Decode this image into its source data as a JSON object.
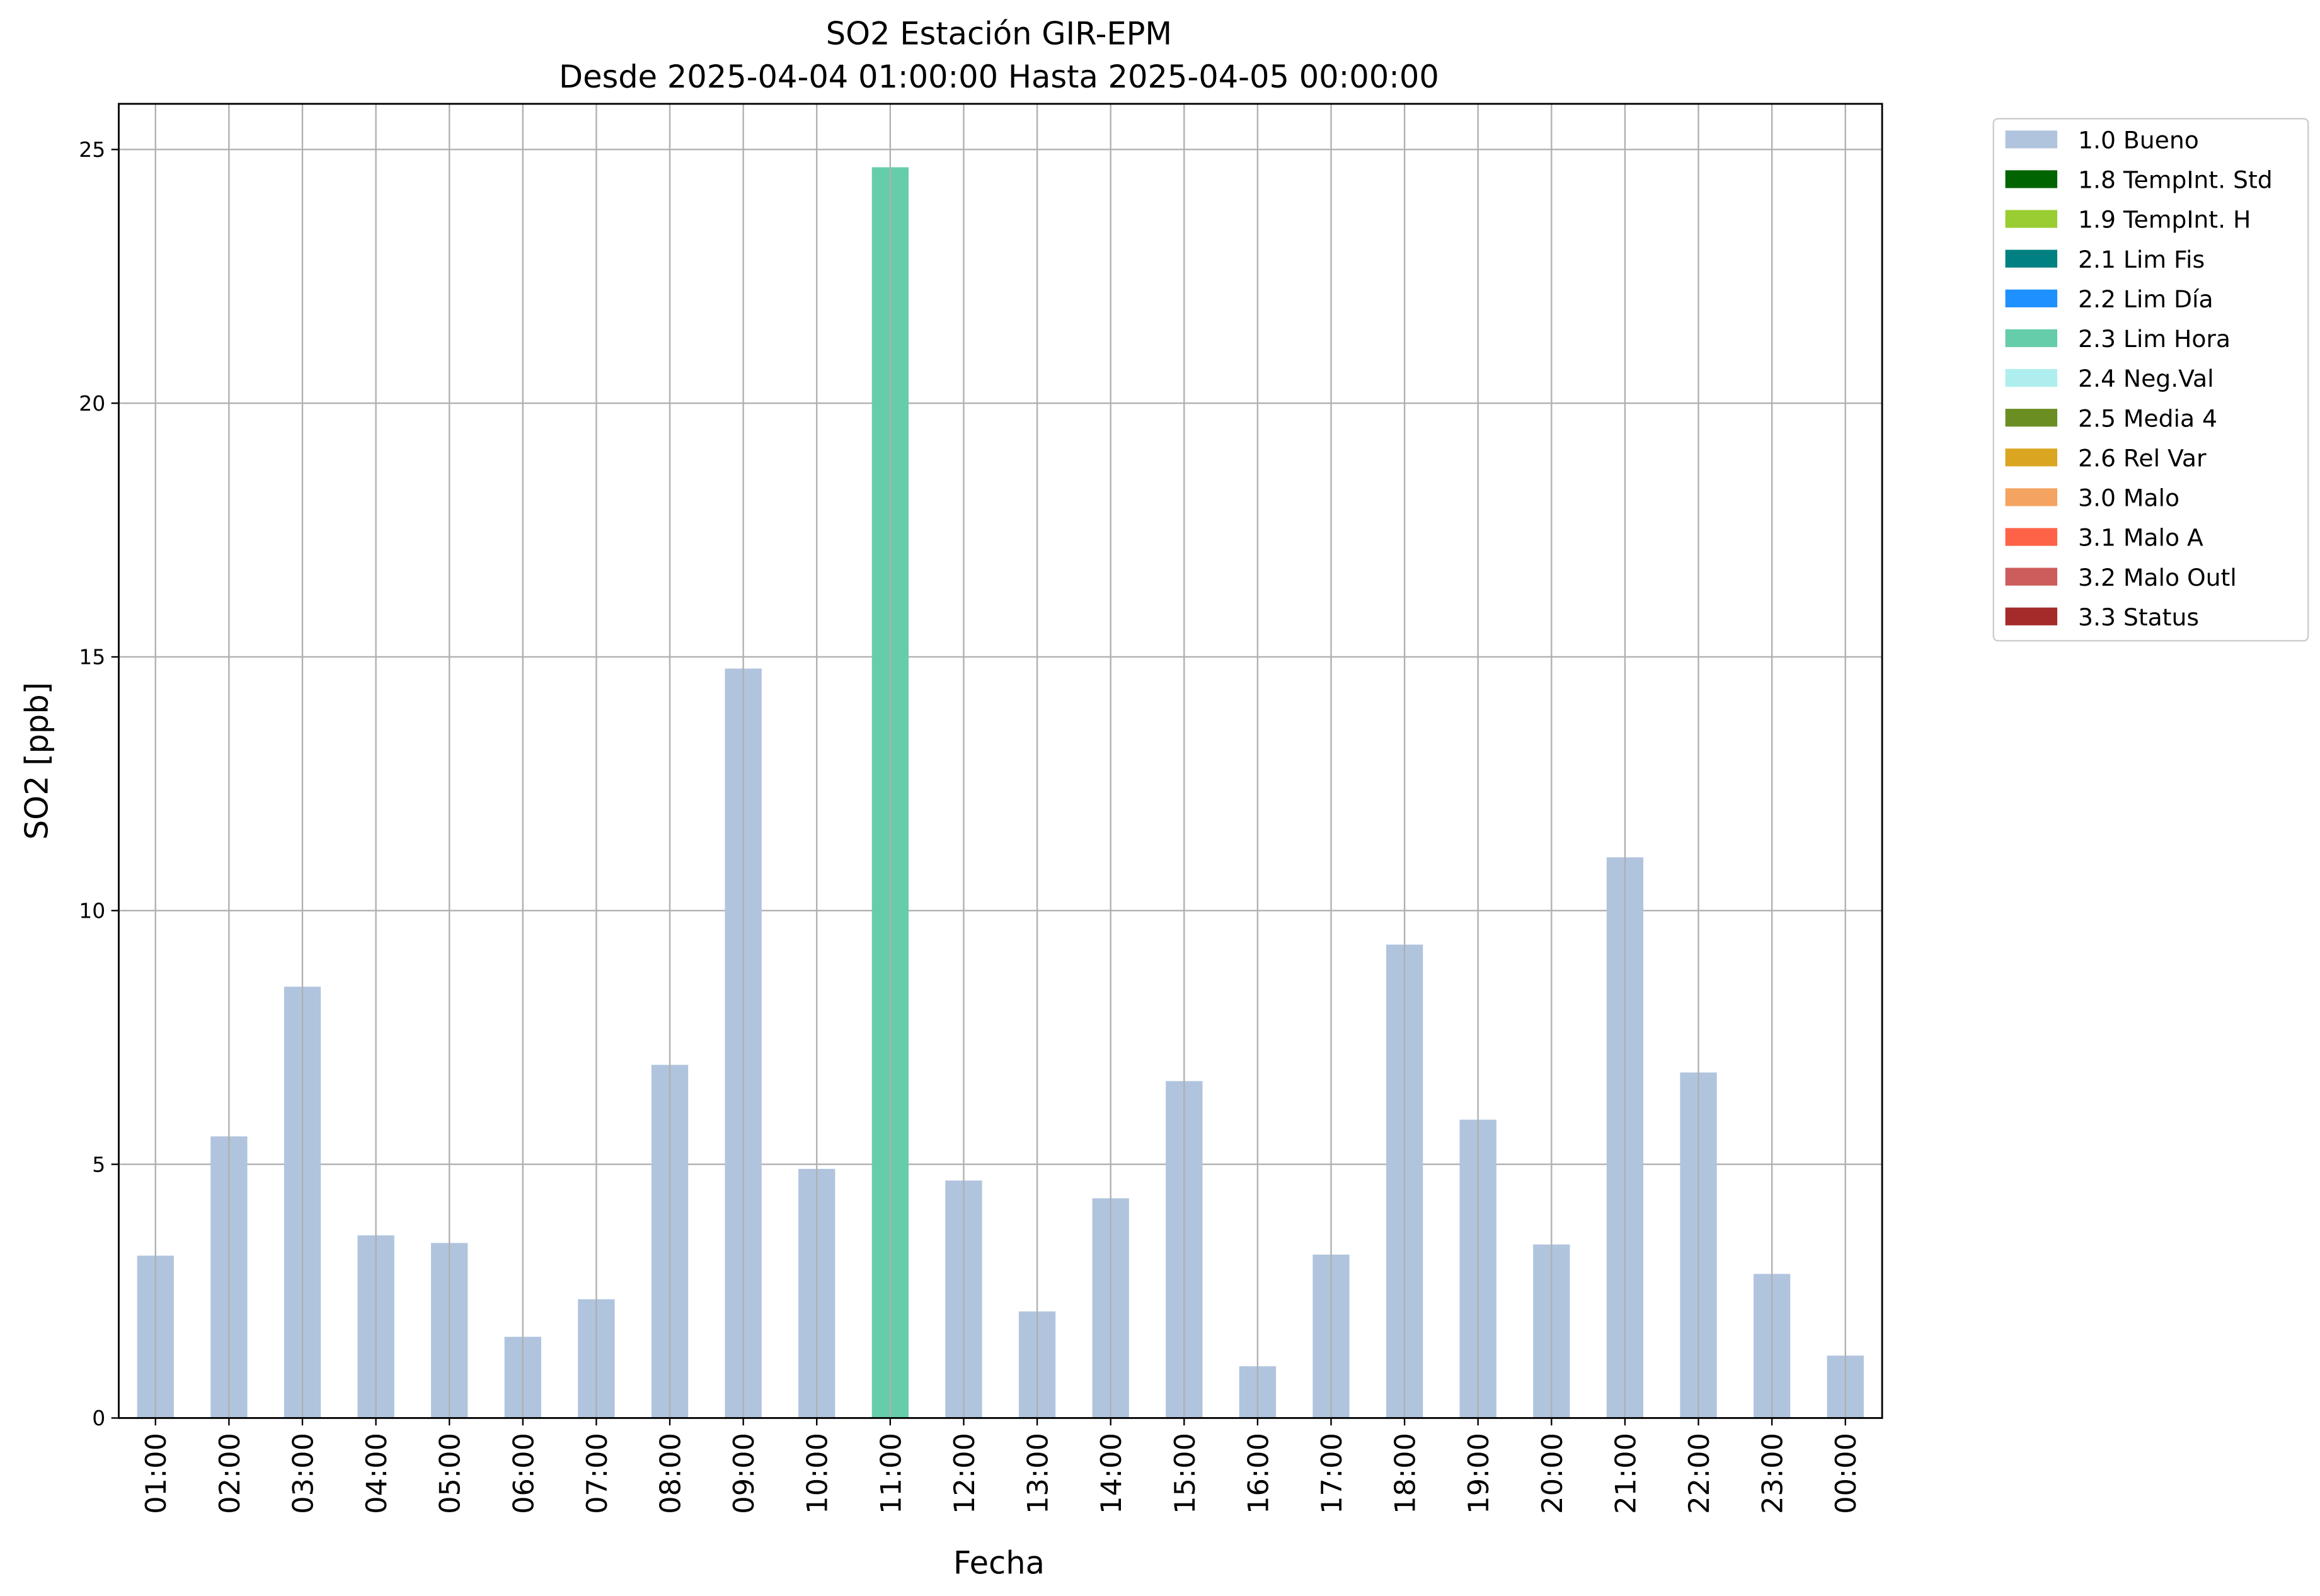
{
  "chart_data": {
    "type": "bar",
    "stacked": true,
    "title": "SO2 Estación GIR-EPM",
    "subtitle": "Desde 2025-04-04 01:00:00 Hasta 2025-04-05 00:00:00",
    "x_label": "Fecha",
    "y_label": "SO2 [ppb]",
    "categories": [
      "01:00",
      "02:00",
      "03:00",
      "04:00",
      "05:00",
      "06:00",
      "07:00",
      "08:00",
      "09:00",
      "10:00",
      "11:00",
      "12:00",
      "13:00",
      "14:00",
      "15:00",
      "16:00",
      "17:00",
      "18:00",
      "19:00",
      "20:00",
      "21:00",
      "22:00",
      "23:00",
      "00:00"
    ],
    "series": [
      {
        "name": "1.0 Bueno",
        "color": "#b0c4de",
        "values": [
          3.2,
          5.55,
          8.5,
          3.6,
          3.45,
          1.6,
          2.34,
          6.96,
          14.77,
          4.91,
          null,
          4.68,
          2.1,
          4.33,
          6.64,
          1.02,
          3.22,
          9.33,
          5.88,
          3.42,
          11.05,
          6.81,
          2.84,
          1.23
        ]
      },
      {
        "name": "1.8 TempInt. Std",
        "color": "#006400",
        "values": [
          null,
          null,
          null,
          null,
          null,
          null,
          null,
          null,
          null,
          null,
          null,
          null,
          null,
          null,
          null,
          null,
          null,
          null,
          null,
          null,
          null,
          null,
          null,
          null
        ]
      },
      {
        "name": "1.9 TempInt. H",
        "color": "#9acd32",
        "values": [
          null,
          null,
          null,
          null,
          null,
          null,
          null,
          null,
          null,
          null,
          null,
          null,
          null,
          null,
          null,
          null,
          null,
          null,
          null,
          null,
          null,
          null,
          null,
          null
        ]
      },
      {
        "name": "2.1 Lim Fis",
        "color": "#008080",
        "values": [
          null,
          null,
          null,
          null,
          null,
          null,
          null,
          null,
          null,
          null,
          null,
          null,
          null,
          null,
          null,
          null,
          null,
          null,
          null,
          null,
          null,
          null,
          null,
          null
        ]
      },
      {
        "name": "2.2 Lim Día",
        "color": "#1e90ff",
        "values": [
          null,
          null,
          null,
          null,
          null,
          null,
          null,
          null,
          null,
          null,
          null,
          null,
          null,
          null,
          null,
          null,
          null,
          null,
          null,
          null,
          null,
          null,
          null,
          null
        ]
      },
      {
        "name": "2.3 Lim Hora",
        "color": "#66cdaa",
        "values": [
          null,
          null,
          null,
          null,
          null,
          null,
          null,
          null,
          null,
          null,
          24.65,
          null,
          null,
          null,
          null,
          null,
          null,
          null,
          null,
          null,
          null,
          null,
          null,
          null
        ]
      },
      {
        "name": "2.4 Neg.Val",
        "color": "#afeeee",
        "values": [
          null,
          null,
          null,
          null,
          null,
          null,
          null,
          null,
          null,
          null,
          null,
          null,
          null,
          null,
          null,
          null,
          null,
          null,
          null,
          null,
          null,
          null,
          null,
          null
        ]
      },
      {
        "name": "2.5 Media 4",
        "color": "#6b8e23",
        "values": [
          null,
          null,
          null,
          null,
          null,
          null,
          null,
          null,
          null,
          null,
          null,
          null,
          null,
          null,
          null,
          null,
          null,
          null,
          null,
          null,
          null,
          null,
          null,
          null
        ]
      },
      {
        "name": "2.6 Rel Var",
        "color": "#daa520",
        "values": [
          null,
          null,
          null,
          null,
          null,
          null,
          null,
          null,
          null,
          null,
          null,
          null,
          null,
          null,
          null,
          null,
          null,
          null,
          null,
          null,
          null,
          null,
          null,
          null
        ]
      },
      {
        "name": "3.0 Malo",
        "color": "#f4a460",
        "values": [
          null,
          null,
          null,
          null,
          null,
          null,
          null,
          null,
          null,
          null,
          null,
          null,
          null,
          null,
          null,
          null,
          null,
          null,
          null,
          null,
          null,
          null,
          null,
          null
        ]
      },
      {
        "name": "3.1 Malo A",
        "color": "#ff6347",
        "values": [
          null,
          null,
          null,
          null,
          null,
          null,
          null,
          null,
          null,
          null,
          null,
          null,
          null,
          null,
          null,
          null,
          null,
          null,
          null,
          null,
          null,
          null,
          null,
          null
        ]
      },
      {
        "name": "3.2 Malo Outl",
        "color": "#cd5c5c",
        "values": [
          null,
          null,
          null,
          null,
          null,
          null,
          null,
          null,
          null,
          null,
          null,
          null,
          null,
          null,
          null,
          null,
          null,
          null,
          null,
          null,
          null,
          null,
          null,
          null
        ]
      },
      {
        "name": "3.3 Status",
        "color": "#a52a2a",
        "values": [
          null,
          null,
          null,
          null,
          null,
          null,
          null,
          null,
          null,
          null,
          null,
          null,
          null,
          null,
          null,
          null,
          null,
          null,
          null,
          null,
          null,
          null,
          null,
          null
        ]
      }
    ],
    "ylim": [
      0,
      25.9
    ],
    "yticks": [
      0,
      5,
      10,
      15,
      20,
      25
    ],
    "grid": true,
    "legend": "outside right"
  }
}
